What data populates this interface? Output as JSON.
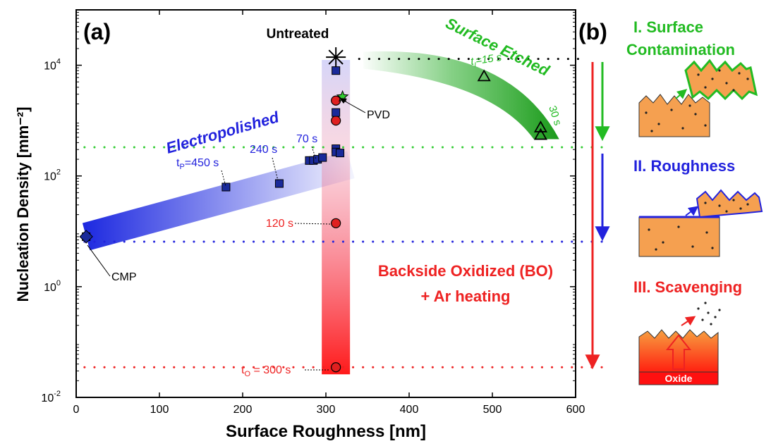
{
  "chart_data": {
    "type": "scatter",
    "panel_a_label": "(a)",
    "panel_b_label": "(b)",
    "xlabel": "Surface Roughness [nm]",
    "ylabel": "Nucleation Density [mm⁻²]",
    "xlim": [
      0,
      600
    ],
    "ylim": [
      0.01,
      100000
    ],
    "yscale": "log",
    "x_ticks": [
      0,
      100,
      200,
      300,
      400,
      500,
      600
    ],
    "y_ticks": [
      {
        "value": 0.01,
        "base": "10",
        "exp": "-2"
      },
      {
        "value": 1,
        "base": "10",
        "exp": "0"
      },
      {
        "value": 100,
        "base": "10",
        "exp": "2"
      },
      {
        "value": 10000,
        "base": "10",
        "exp": "4"
      }
    ],
    "reference_lines": [
      {
        "y": 13000,
        "color": "#000000"
      },
      {
        "y": 330,
        "color": "#33cc33"
      },
      {
        "y": 6.5,
        "color": "#2222dd"
      },
      {
        "y": 0.035,
        "color": "#ee2222"
      }
    ],
    "series": [
      {
        "group": "electropolished",
        "marker": "square",
        "color": "#1a2a9a",
        "points": [
          [
            12,
            8
          ],
          [
            180,
            63
          ],
          [
            244,
            73
          ],
          [
            280,
            190
          ],
          [
            285,
            190
          ],
          [
            290,
            200
          ],
          [
            296,
            215
          ]
        ]
      },
      {
        "group": "cmp",
        "marker": "diamond",
        "color": "#1a2a9a",
        "points": [
          [
            12,
            8
          ]
        ]
      },
      {
        "group": "surface_etched",
        "marker": "triangle",
        "color": "#000000",
        "points": [
          [
            490,
            6300
          ],
          [
            558,
            750
          ],
          [
            558,
            550
          ]
        ]
      },
      {
        "group": "backside_oxidized",
        "marker": "circle",
        "color": "#e02020",
        "points": [
          [
            312,
            2300
          ],
          [
            312,
            1000
          ],
          [
            312,
            14
          ],
          [
            312,
            0.035
          ]
        ]
      },
      {
        "group": "untreated_column",
        "marker": "square",
        "color": "#1a2a9a",
        "points": [
          [
            312,
            8000
          ],
          [
            312,
            1400
          ],
          [
            312,
            310
          ],
          [
            312,
            270
          ],
          [
            317,
            260
          ]
        ]
      },
      {
        "group": "pvd",
        "marker": "star",
        "color": "#33cc33",
        "points": [
          [
            320,
            2700
          ]
        ]
      },
      {
        "group": "untreated",
        "marker": "asterisk",
        "color": "#000000",
        "points": [
          [
            312,
            14000
          ]
        ]
      }
    ],
    "annotations": {
      "untreated": "Untreated",
      "surface_etched": "Surface Etched",
      "etch_t15_prefix": "t",
      "etch_t15_sub": "I",
      "etch_t15_suffix": "=15 s",
      "etch_t30": "30 s",
      "pvd": "PVD",
      "electropolished": "Electropolished",
      "ep_450_prefix": "t",
      "ep_450_sub": "P",
      "ep_450_suffix": "=450 s",
      "ep_240": "240 s",
      "ep_70": "70 s",
      "bo_120": "120 s",
      "cmp": "CMP",
      "bo_line1": "Backside Oxidized (BO)",
      "bo_line2": "+ Ar heating",
      "bo_300_prefix": "t",
      "bo_300_sub": "O",
      "bo_300_suffix": " = 300 s"
    }
  },
  "panel_b": {
    "stage1_line1": "I. Surface",
    "stage1_line2": "Contamination",
    "stage2": "II. Roughness",
    "stage3": "III. Scavenging",
    "oxide_label": "Oxide"
  },
  "colors": {
    "blue": "#2222dd",
    "green": "#22bb22",
    "red": "#ee2222",
    "orange": "#f5a050",
    "navy": "#1a2a9a"
  }
}
